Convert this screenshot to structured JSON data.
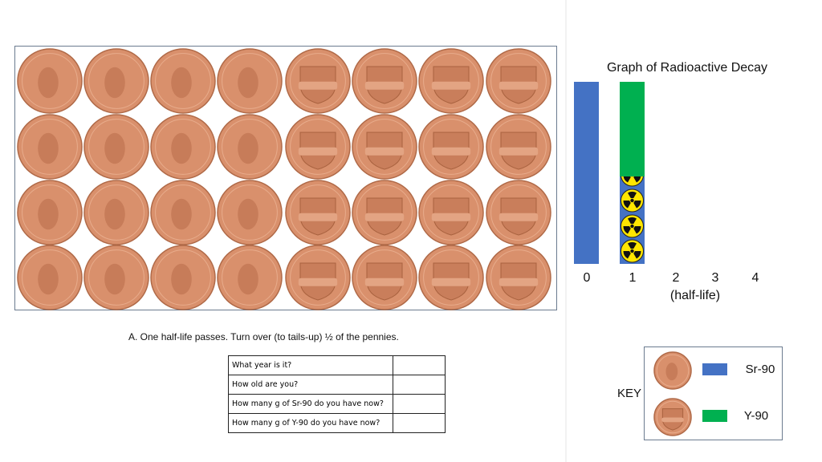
{
  "graph": {
    "title": "Graph of Radioactive Decay",
    "x_labels": [
      "0",
      "1",
      "2",
      "3",
      "4"
    ],
    "x_axis_label": "(half-life)"
  },
  "instruction": "A.  One half-life passes.  Turn over (to tails-up) ½ of the pennies.",
  "table": {
    "rows": [
      [
        "What year is it?"
      ],
      [
        "How old are you?"
      ],
      [
        "How many g of Sr-90 do you have now?"
      ],
      [
        "How many g of Y-90 do you have now?"
      ]
    ]
  },
  "key": {
    "title": "KEY",
    "items": [
      "Sr-90",
      "Y-90"
    ]
  }
}
